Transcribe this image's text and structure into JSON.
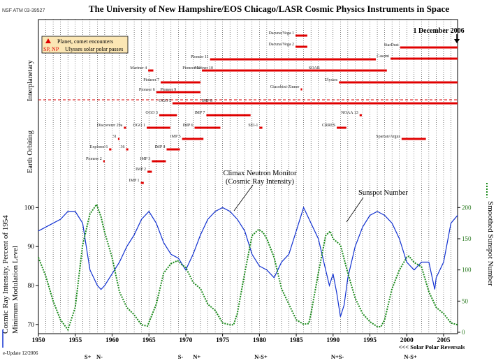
{
  "header": {
    "code": "NSF ATM 03-39527",
    "title": "The University of New Hampshire/EOS   Chicago/LASR Cosmic Physics Instruments in Space",
    "date_marker": "1 December 2006"
  },
  "legend": {
    "row1_label": "Planet, comet encounters",
    "row2_key": "SP, NP",
    "row2_label": "Ulysses solar polar passes"
  },
  "regions": {
    "interplanetary": "Interplanetary",
    "earth_orbiting": "Earth Orbiting"
  },
  "colors": {
    "neutron": "#1030d0",
    "sunspot": "#1a8a1a",
    "mission": "#e00000",
    "grid": "#000000"
  },
  "missions": [
    {
      "label": "Ulysses",
      "start": 1990.8,
      "end": 2006.9,
      "arrow": false
    },
    {
      "label": "Cassini",
      "start": 1997.8,
      "end": 2006.9,
      "arrow": false
    },
    {
      "label": "StarDust",
      "start": 1999.1,
      "end": 2006.9,
      "arrow": false
    },
    {
      "label": "Pioneer 10",
      "start": 1972.2,
      "end": 1997.3,
      "arrow": false
    },
    {
      "label": "Pioneer 11",
      "start": 1973.3,
      "end": 1995.8,
      "arrow": false
    },
    {
      "label": "Pioneer 7",
      "start": 1966.6,
      "end": 1972.0,
      "arrow": false
    },
    {
      "label": "Pioneer 6",
      "start": 1966.0,
      "end": 1972.0,
      "arrow": false
    },
    {
      "label": "Mariner 10",
      "start": 1973.9,
      "end": 1975.3,
      "arrow": false
    },
    {
      "label": "Mariner 4",
      "start": 1964.9,
      "end": 1965.6,
      "arrow": false
    },
    {
      "label": "Pioneer 9",
      "start": 1968.9,
      "end": 1969.2,
      "arrow": false
    },
    {
      "label": "Giacobini-Zinner",
      "start": 1985.6,
      "end": 1985.8,
      "arrow": false
    },
    {
      "label": "Dacuna/Vega 1",
      "start": 1984.9,
      "end": 1986.5,
      "arrow": false
    },
    {
      "label": "Dacuna/Vega 2",
      "start": 1984.9,
      "end": 1986.5,
      "arrow": false
    },
    {
      "label": "SOAR",
      "start": 1988.4,
      "end": 1989.4,
      "arrow": false
    },
    {
      "label": "OGO 5",
      "start": 1968.2,
      "end": 2000.9,
      "arrow": false
    },
    {
      "label": "IMP 8",
      "start": 1973.8,
      "end": 2006.9,
      "arrow": false
    },
    {
      "label": "OGO 3",
      "start": 1966.4,
      "end": 1968.8,
      "arrow": false
    },
    {
      "label": "IMP 7",
      "start": 1972.8,
      "end": 1978.8,
      "arrow": false
    },
    {
      "label": "NOAA 13",
      "start": 1993.6,
      "end": 1993.9,
      "arrow": false
    },
    {
      "label": "Discoverer 29a",
      "start": 1961.6,
      "end": 1961.9,
      "arrow": false
    },
    {
      "label": "OGO 1",
      "start": 1964.7,
      "end": 1967.9,
      "arrow": false
    },
    {
      "label": "IMP 6",
      "start": 1971.2,
      "end": 1974.7,
      "arrow": false
    },
    {
      "label": "SEI-1",
      "start": 1980.0,
      "end": 1980.4,
      "arrow": false
    },
    {
      "label": "CRRES",
      "start": 1990.5,
      "end": 1991.8,
      "arrow": false
    },
    {
      "label": "31",
      "start": 1960.8,
      "end": 1961.0,
      "arrow": false
    },
    {
      "label": "IMP 5",
      "start": 1969.5,
      "end": 1972.4,
      "arrow": false
    },
    {
      "label": "Spartan/Argus",
      "start": 1999.3,
      "end": 2002.6,
      "arrow": false
    },
    {
      "label": "Explorer 6",
      "start": 1959.6,
      "end": 1959.9,
      "arrow": false
    },
    {
      "label": "36",
      "start": 1961.9,
      "end": 1962.2,
      "arrow": false
    },
    {
      "label": "IMP 4",
      "start": 1967.4,
      "end": 1969.2,
      "arrow": false
    },
    {
      "label": "Pioneer 2",
      "start": 1958.8,
      "end": 1959.0,
      "arrow": false
    },
    {
      "label": "IMP 3",
      "start": 1965.4,
      "end": 1967.3,
      "arrow": false
    },
    {
      "label": "IMP 2",
      "start": 1964.8,
      "end": 1965.4,
      "arrow": false
    },
    {
      "label": "IMP 1",
      "start": 1963.9,
      "end": 1964.3,
      "arrow": false
    }
  ],
  "annotations": {
    "neutron_line1": "Climax Neutron Monitor",
    "neutron_line2": "(Cosmic Ray Intensity)",
    "sunspot": "Sunspot Number"
  },
  "left_axis": {
    "label_line1": "Cosmic Ray Intensity, Percent of 1954",
    "label_line2": "Minimum Modulation Level",
    "ticks": [
      "100",
      "90",
      "80",
      "70"
    ]
  },
  "right_axis": {
    "label": "Smoothed Sunspot Number",
    "ticks": [
      "200",
      "150",
      "100",
      "50",
      "0"
    ]
  },
  "x_axis": {
    "ticks": [
      "1950",
      "1955",
      "1960",
      "1965",
      "1970",
      "1975",
      "1980",
      "1985",
      "1990",
      "1995",
      "2000",
      "2005"
    ]
  },
  "polarity": {
    "items": [
      "S+",
      "N-",
      "S-",
      "N+",
      "N-S+",
      "N+S-",
      "N-S+"
    ],
    "label": "<<< Solar Polar Reversals"
  },
  "footer": {
    "update": "e-Update 12/2006"
  },
  "chart_data": {
    "type": "line",
    "x_range": [
      1950,
      2006.9
    ],
    "series": [
      {
        "name": "Climax Neutron Monitor",
        "axis": "left",
        "ylim": [
          68,
          104
        ],
        "x": [
          1950,
          1951,
          1952,
          1953,
          1953.5,
          1954,
          1955,
          1956,
          1956.5,
          1957,
          1957.5,
          1958,
          1958.5,
          1959,
          1960,
          1961,
          1962,
          1963,
          1964,
          1965,
          1966,
          1967,
          1968,
          1969,
          1970,
          1971,
          1972,
          1973,
          1974,
          1975,
          1976,
          1977,
          1978,
          1979,
          1980,
          1981,
          1982,
          1983,
          1984,
          1985,
          1986,
          1987,
          1988,
          1989,
          1989.5,
          1990,
          1990.5,
          1991,
          1991.5,
          1992,
          1993,
          1994,
          1995,
          1996,
          1997,
          1998,
          1999,
          2000,
          2001,
          2002,
          2003,
          2003.8,
          2004,
          2005,
          2006,
          2006.9
        ],
        "y": [
          94,
          95,
          96,
          97,
          98,
          99,
          99,
          96,
          90,
          84,
          82,
          80,
          79,
          80,
          83,
          86,
          90,
          93,
          97,
          99,
          96,
          91,
          88,
          87,
          84,
          88,
          93,
          97,
          99,
          100,
          99,
          97,
          94,
          88,
          85,
          84,
          82,
          86,
          88,
          94,
          100,
          96,
          92,
          84,
          80,
          83,
          78,
          72,
          75,
          82,
          90,
          95,
          98,
          99,
          98,
          96,
          92,
          86,
          84,
          86,
          86,
          79,
          82,
          86,
          96,
          98
        ]
      },
      {
        "name": "Smoothed Sunspot Number",
        "axis": "right",
        "ylim": [
          0,
          225
        ],
        "x": [
          1950,
          1951,
          1952,
          1953,
          1954,
          1955,
          1956,
          1957,
          1957.9,
          1958.5,
          1959,
          1960,
          1961,
          1962,
          1963,
          1964,
          1964.8,
          1966,
          1967,
          1968,
          1968.9,
          1969.5,
          1970,
          1971,
          1972,
          1973,
          1974,
          1975,
          1976,
          1976.5,
          1977,
          1978,
          1979,
          1979.9,
          1980.5,
          1981,
          1982,
          1983,
          1984,
          1985,
          1986,
          1986.7,
          1987,
          1988,
          1989,
          1989.6,
          1990,
          1991,
          1992,
          1993,
          1994,
          1995,
          1996,
          1996.5,
          1997,
          1998,
          1999,
          2000,
          2000.3,
          2001,
          2002,
          2003,
          2004,
          2005,
          2006,
          2006.9
        ],
        "y": [
          120,
          90,
          50,
          20,
          4,
          40,
          140,
          190,
          205,
          185,
          160,
          120,
          65,
          40,
          28,
          12,
          10,
          45,
          95,
          110,
          115,
          108,
          104,
          80,
          70,
          45,
          35,
          15,
          12,
          12,
          30,
          95,
          155,
          165,
          160,
          150,
          120,
          70,
          45,
          20,
          13,
          14,
          30,
          95,
          155,
          162,
          150,
          140,
          95,
          55,
          30,
          17,
          9,
          9,
          20,
          70,
          100,
          120,
          122,
          112,
          105,
          65,
          40,
          30,
          15,
          12
        ]
      }
    ]
  }
}
